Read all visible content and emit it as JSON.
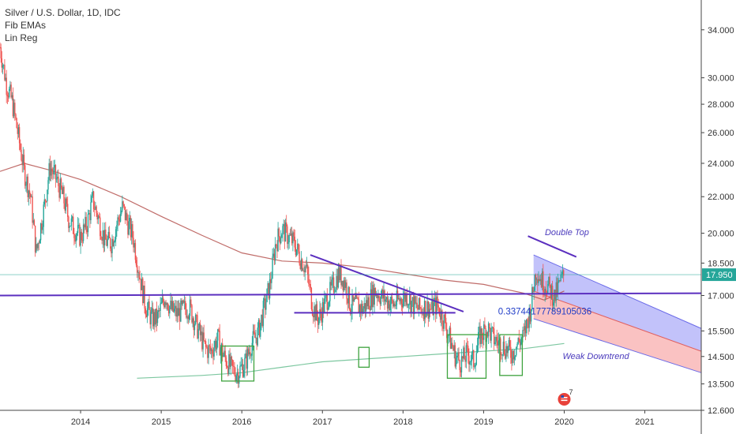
{
  "legend": {
    "symbol_line": "Silver / U.S. Dollar, 1D, IDC",
    "indicator_1": "Fib EMAs",
    "indicator_2": "Lin Reg"
  },
  "colors": {
    "up": "#26a69a",
    "down": "#ef5350",
    "ema_long": "#b5524f",
    "ema_slow": "#7dc7a0",
    "trendline": "#5b2fbf",
    "box": "#3fa33f",
    "current_price": "#26a69a",
    "channel_upper": "#8f8ff5",
    "channel_lower": "#f58f8f"
  },
  "chart_data": {
    "type": "candlestick",
    "log_scale": true,
    "x_range": [
      2013.0,
      2021.7
    ],
    "y_range": [
      12.6,
      36.0
    ],
    "y_ticks": [
      "34.000",
      "30.000",
      "28.000",
      "26.000",
      "24.000",
      "22.000",
      "20.000",
      "18.500",
      "17.000",
      "15.500",
      "14.500",
      "13.500",
      "12.600"
    ],
    "y_tick_values": [
      34,
      30,
      28,
      26,
      24,
      22,
      20,
      18.5,
      17,
      15.5,
      14.5,
      13.5,
      12.6
    ],
    "x_ticks": [
      "2014",
      "2015",
      "2016",
      "2017",
      "2018",
      "2019",
      "2020",
      "2021"
    ],
    "x_tick_values": [
      2014,
      2015,
      2016,
      2017,
      2018,
      2019,
      2020,
      2021
    ],
    "current_price": {
      "label": "17.950",
      "value": 17.95
    },
    "price_path": [
      [
        2013.0,
        32.5
      ],
      [
        2013.08,
        29.5
      ],
      [
        2013.15,
        28.2
      ],
      [
        2013.22,
        26.0
      ],
      [
        2013.3,
        23.5
      ],
      [
        2013.38,
        22.0
      ],
      [
        2013.45,
        19.0
      ],
      [
        2013.55,
        21.5
      ],
      [
        2013.62,
        23.8
      ],
      [
        2013.7,
        23.0
      ],
      [
        2013.78,
        22.0
      ],
      [
        2013.85,
        20.8
      ],
      [
        2013.92,
        20.2
      ],
      [
        2014.0,
        19.8
      ],
      [
        2014.08,
        20.5
      ],
      [
        2014.15,
        21.8
      ],
      [
        2014.22,
        20.8
      ],
      [
        2014.3,
        19.6
      ],
      [
        2014.38,
        19.5
      ],
      [
        2014.45,
        20.5
      ],
      [
        2014.52,
        21.4
      ],
      [
        2014.58,
        20.6
      ],
      [
        2014.65,
        19.8
      ],
      [
        2014.72,
        18.2
      ],
      [
        2014.8,
        16.6
      ],
      [
        2014.88,
        16.0
      ],
      [
        2014.95,
        16.0
      ],
      [
        2015.05,
        17.0
      ],
      [
        2015.12,
        16.4
      ],
      [
        2015.2,
        16.2
      ],
      [
        2015.28,
        16.4
      ],
      [
        2015.35,
        16.5
      ],
      [
        2015.45,
        15.6
      ],
      [
        2015.55,
        14.8
      ],
      [
        2015.62,
        14.7
      ],
      [
        2015.7,
        15.2
      ],
      [
        2015.78,
        14.5
      ],
      [
        2015.88,
        14.0
      ],
      [
        2015.95,
        13.9
      ],
      [
        2016.05,
        14.3
      ],
      [
        2016.12,
        15.0
      ],
      [
        2016.2,
        15.4
      ],
      [
        2016.28,
        16.5
      ],
      [
        2016.35,
        17.5
      ],
      [
        2016.42,
        19.5
      ],
      [
        2016.5,
        20.2
      ],
      [
        2016.58,
        19.8
      ],
      [
        2016.65,
        19.5
      ],
      [
        2016.72,
        18.8
      ],
      [
        2016.8,
        18.2
      ],
      [
        2016.88,
        16.5
      ],
      [
        2016.95,
        16.0
      ],
      [
        2017.05,
        16.8
      ],
      [
        2017.12,
        17.3
      ],
      [
        2017.2,
        18.0
      ],
      [
        2017.28,
        17.6
      ],
      [
        2017.35,
        16.5
      ],
      [
        2017.42,
        16.6
      ],
      [
        2017.5,
        16.4
      ],
      [
        2017.58,
        16.8
      ],
      [
        2017.65,
        17.2
      ],
      [
        2017.72,
        17.0
      ],
      [
        2017.8,
        16.8
      ],
      [
        2017.88,
        16.6
      ],
      [
        2017.95,
        16.8
      ],
      [
        2018.05,
        17.0
      ],
      [
        2018.12,
        16.6
      ],
      [
        2018.2,
        16.4
      ],
      [
        2018.28,
        16.5
      ],
      [
        2018.35,
        16.4
      ],
      [
        2018.42,
        16.6
      ],
      [
        2018.5,
        16.0
      ],
      [
        2018.58,
        15.2
      ],
      [
        2018.65,
        14.5
      ],
      [
        2018.72,
        14.3
      ],
      [
        2018.8,
        14.6
      ],
      [
        2018.88,
        14.3
      ],
      [
        2018.95,
        15.3
      ],
      [
        2019.05,
        15.6
      ],
      [
        2019.12,
        15.2
      ],
      [
        2019.2,
        15.0
      ],
      [
        2019.28,
        14.8
      ],
      [
        2019.35,
        14.6
      ],
      [
        2019.42,
        15.0
      ],
      [
        2019.5,
        15.3
      ],
      [
        2019.58,
        16.4
      ],
      [
        2019.65,
        18.2
      ],
      [
        2019.72,
        17.7
      ],
      [
        2019.8,
        17.4
      ],
      [
        2019.88,
        16.9
      ],
      [
        2019.95,
        17.6
      ],
      [
        2020.0,
        17.95
      ]
    ],
    "ema_long": [
      [
        2013.0,
        23.5
      ],
      [
        2013.3,
        24.0
      ],
      [
        2013.6,
        23.6
      ],
      [
        2014.0,
        23.0
      ],
      [
        2014.5,
        22.0
      ],
      [
        2015.0,
        20.9
      ],
      [
        2015.5,
        19.9
      ],
      [
        2016.0,
        19.0
      ],
      [
        2016.5,
        18.6
      ],
      [
        2017.0,
        18.5
      ],
      [
        2017.5,
        18.3
      ],
      [
        2018.0,
        18.0
      ],
      [
        2018.5,
        17.7
      ],
      [
        2019.0,
        17.5
      ],
      [
        2019.5,
        17.1
      ],
      [
        2019.75,
        16.8
      ],
      [
        2020.0,
        17.2
      ]
    ],
    "ema_slow": [
      [
        2014.7,
        13.7
      ],
      [
        2015.5,
        13.8
      ],
      [
        2016.0,
        13.9
      ],
      [
        2016.5,
        14.1
      ],
      [
        2017.0,
        14.3
      ],
      [
        2017.5,
        14.4
      ],
      [
        2018.0,
        14.5
      ],
      [
        2018.5,
        14.6
      ],
      [
        2019.0,
        14.7
      ],
      [
        2019.5,
        14.8
      ],
      [
        2020.0,
        15.0
      ]
    ],
    "annotations": [
      {
        "text": "Double Top",
        "x": 2019.76,
        "y": 19.9
      },
      {
        "text": "0.33744177789105036",
        "x": 2019.18,
        "y": 16.18
      },
      {
        "text": "Weak Downtrend",
        "x": 2019.98,
        "y": 14.4
      }
    ],
    "trendlines": [
      {
        "from": [
          2013.0,
          17.0
        ],
        "to": [
          2021.7,
          17.1
        ]
      },
      {
        "from": [
          2016.85,
          18.9
        ],
        "to": [
          2018.75,
          16.3
        ]
      },
      {
        "from": [
          2016.65,
          16.25
        ],
        "to": [
          2018.65,
          16.25
        ]
      },
      {
        "from": [
          2019.55,
          19.85
        ],
        "to": [
          2020.15,
          18.8
        ]
      }
    ],
    "boxes": [
      {
        "x0": 2015.75,
        "x1": 2016.15,
        "y0": 13.6,
        "y1": 14.9
      },
      {
        "x0": 2017.45,
        "x1": 2017.58,
        "y0": 14.1,
        "y1": 14.85
      },
      {
        "x0": 2018.55,
        "x1": 2019.03,
        "y0": 13.7,
        "y1": 15.35
      },
      {
        "x0": 2019.2,
        "x1": 2019.48,
        "y0": 13.8,
        "y1": 15.35
      }
    ],
    "channel": {
      "x0": 2019.62,
      "x1": 2021.7,
      "upper": [
        18.9,
        15.6
      ],
      "mid": [
        17.2,
        14.7
      ],
      "lower": [
        16.0,
        13.9
      ]
    },
    "badge": {
      "count": "7"
    }
  }
}
